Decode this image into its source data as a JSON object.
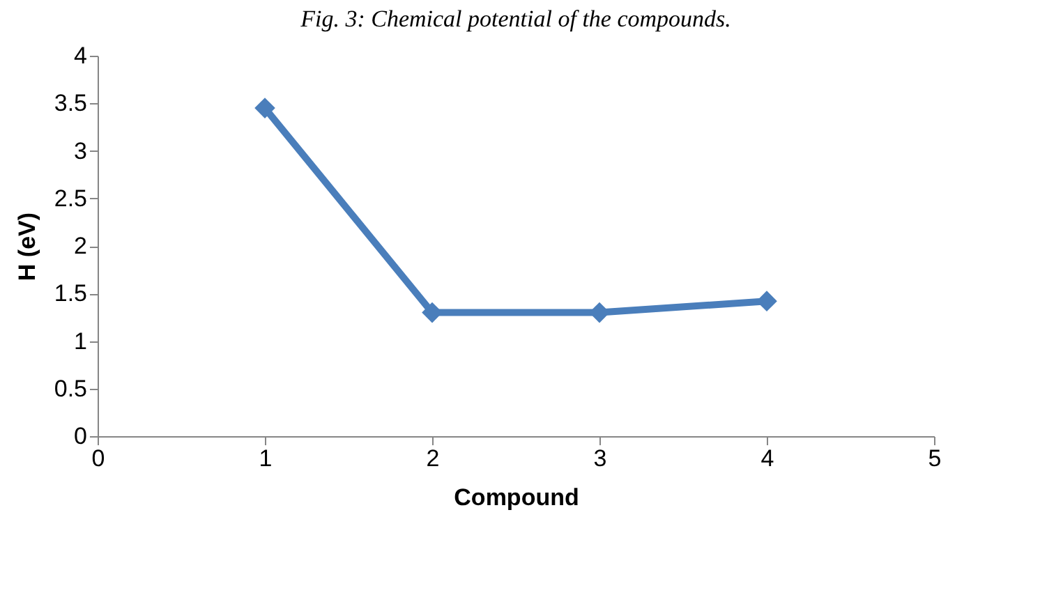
{
  "chart_data": {
    "type": "line",
    "title": "Fig. 3: Chemical potential of the compounds.",
    "xlabel": "Compound",
    "ylabel": "H (eV)",
    "x": [
      1,
      2,
      3,
      4
    ],
    "series": [
      {
        "color": "#4a7ebb",
        "values": [
          3.45,
          1.3,
          1.3,
          1.42
        ]
      }
    ],
    "xlim": [
      0,
      5
    ],
    "xticks": [
      0,
      1,
      2,
      3,
      4,
      5
    ],
    "ylim": [
      0,
      4
    ],
    "yticks": [
      0,
      0.5,
      1,
      1.5,
      2,
      2.5,
      3,
      3.5,
      4
    ],
    "grid": false,
    "legend": false,
    "marker": "diamond",
    "line_style": "solid"
  }
}
